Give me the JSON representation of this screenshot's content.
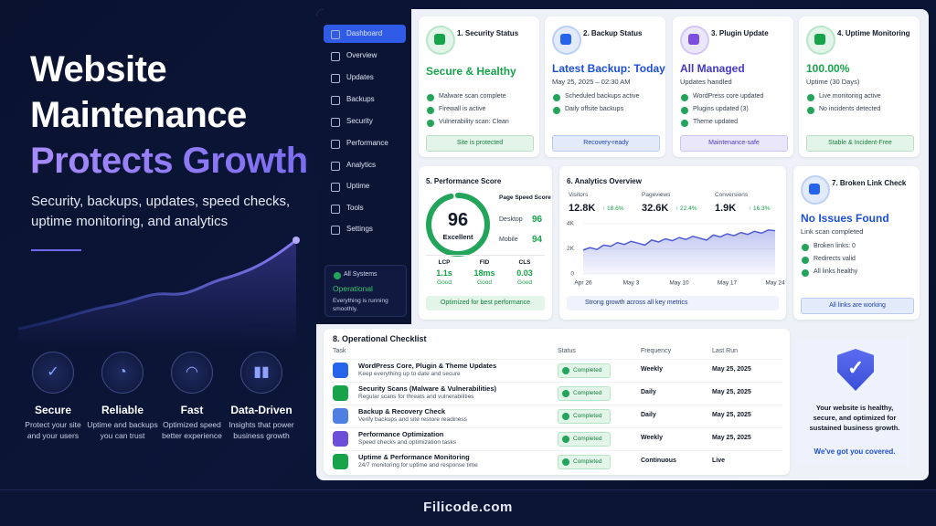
{
  "hero": {
    "title_lines": [
      "Website",
      "Maintenance"
    ],
    "title_accent": "Protects Growth",
    "subtitle_lines": [
      "Security, backups, updates, speed checks,",
      "uptime monitoring, and analytics"
    ]
  },
  "features": [
    {
      "title": "Secure",
      "desc_lines": [
        "Protect your site",
        "and your users"
      ]
    },
    {
      "title": "Reliable",
      "desc_lines": [
        "Uptime and backups",
        "you can trust"
      ]
    },
    {
      "title": "Fast",
      "desc_lines": [
        "Optimized speed",
        "better experience"
      ]
    },
    {
      "title": "Data-Driven",
      "desc_lines": [
        "Insights that power",
        "business growth"
      ]
    }
  ],
  "footer": "Filicode.com",
  "sidebar": {
    "items": [
      "Dashboard",
      "Overview",
      "Updates",
      "Backups",
      "Security",
      "Performance",
      "Analytics",
      "Uptime",
      "Tools",
      "Settings"
    ],
    "status": {
      "label": "All Systems",
      "state": "Operational",
      "note_lines": [
        "Everything is running",
        "smoothly."
      ]
    }
  },
  "cards": [
    {
      "title": "1. Security Status",
      "headline": "Secure & Healthy",
      "items": [
        "Malware scan complete",
        "Firewall is active",
        "Vulnerability scan: Clean"
      ],
      "badge": "Site is protected"
    },
    {
      "title": "2. Backup Status",
      "headline": "Latest Backup: Today",
      "sub": "May 25, 2025 – 02:30 AM",
      "items": [
        "Scheduled backups active",
        "Daily offsite backups"
      ],
      "badge": "Recovery-ready"
    },
    {
      "title": "3. Plugin Update",
      "headline": "All Managed",
      "sub": "Updates handled",
      "items": [
        "WordPress core updated",
        "Plugins updated (3)",
        "Theme updated"
      ],
      "badge": "Maintenance-safe"
    },
    {
      "title": "4. Uptime Monitoring",
      "headline": "100.00%",
      "sub": "Uptime (30 Days)",
      "items": [
        "Live monitoring active",
        "No incidents detected"
      ],
      "badge": "Stable & Incident-Free"
    }
  ],
  "performance": {
    "title": "5. Performance Score",
    "score": 96,
    "score_label": "Excellent",
    "pagespeed_title": "Page Speed Score",
    "rows": [
      {
        "label": "Desktop",
        "value": 96
      },
      {
        "label": "Mobile",
        "value": 94
      }
    ],
    "vitals": [
      {
        "name": "LCP",
        "value": "1.1s",
        "rating": "Good"
      },
      {
        "name": "FID",
        "value": "18ms",
        "rating": "Good"
      },
      {
        "name": "CLS",
        "value": "0.03",
        "rating": "Good"
      }
    ],
    "badge": "Optimized for best performance"
  },
  "analytics": {
    "title": "6. Analytics Overview",
    "stats": [
      {
        "label": "Visitors",
        "value": "12.8K",
        "change": "↑ 18.6%"
      },
      {
        "label": "Pageviews",
        "value": "32.6K",
        "change": "↑ 22.4%"
      },
      {
        "label": "Conversions",
        "value": "1.9K",
        "change": "↑ 16.3%"
      }
    ],
    "badge": "Strong growth across all key metrics"
  },
  "chart_data": {
    "type": "line",
    "categories": [
      "Apr 26",
      null,
      null,
      null,
      null,
      null,
      null,
      "May 3",
      null,
      null,
      null,
      null,
      null,
      null,
      "May 10",
      null,
      null,
      null,
      null,
      null,
      null,
      "May 17",
      null,
      null,
      null,
      null,
      null,
      null,
      "May 24"
    ],
    "values": [
      1900,
      2100,
      1950,
      2300,
      2200,
      2500,
      2350,
      2600,
      2450,
      2300,
      2700,
      2550,
      2800,
      2650,
      2900,
      2750,
      3000,
      2850,
      2700,
      3100,
      2950,
      3200,
      3050,
      3300,
      3150,
      3400,
      3250,
      3500,
      3450
    ],
    "color": "#4f5bd5",
    "ylim": [
      0,
      4000
    ],
    "yticks": [
      0,
      {
        "value": 2000,
        "label": "2K"
      },
      {
        "value": 4000,
        "label": "4K"
      }
    ]
  },
  "links": {
    "title": "7. Broken Link Check",
    "headline": "No Issues Found",
    "sub": "Link scan completed",
    "items": [
      "Broken links: 0",
      "Redirects valid",
      "All links healthy"
    ],
    "badge": "All links are working"
  },
  "checklist": {
    "title": "8. Operational Checklist",
    "columns": [
      "Task",
      "Status",
      "Frequency",
      "Last Run"
    ],
    "rows": [
      {
        "task": "WordPress Core, Plugin & Theme Updates",
        "desc": "Keep everything up to date and secure",
        "status": "Completed",
        "frequency": "Weekly",
        "last_run": "May 25, 2025"
      },
      {
        "task": "Security Scans (Malware & Vulnerabilities)",
        "desc": "Regular scans for threats and vulnerabilities",
        "status": "Completed",
        "frequency": "Daily",
        "last_run": "May 25, 2025"
      },
      {
        "task": "Backup & Recovery Check",
        "desc": "Verify backups and site restore readiness",
        "status": "Completed",
        "frequency": "Daily",
        "last_run": "May 25, 2025"
      },
      {
        "task": "Performance Optimization",
        "desc": "Speed checks and optimization tasks",
        "status": "Completed",
        "frequency": "Weekly",
        "last_run": "May 25, 2025"
      },
      {
        "task": "Uptime & Performance Monitoring",
        "desc": "24/7 monitoring for uptime and response time",
        "status": "Completed",
        "frequency": "Continuous",
        "last_run": "Live"
      }
    ]
  },
  "promo": {
    "lines": [
      "Your website is healthy,",
      "secure, and optimized for",
      "sustained business growth."
    ],
    "cta": "We've got you covered."
  }
}
